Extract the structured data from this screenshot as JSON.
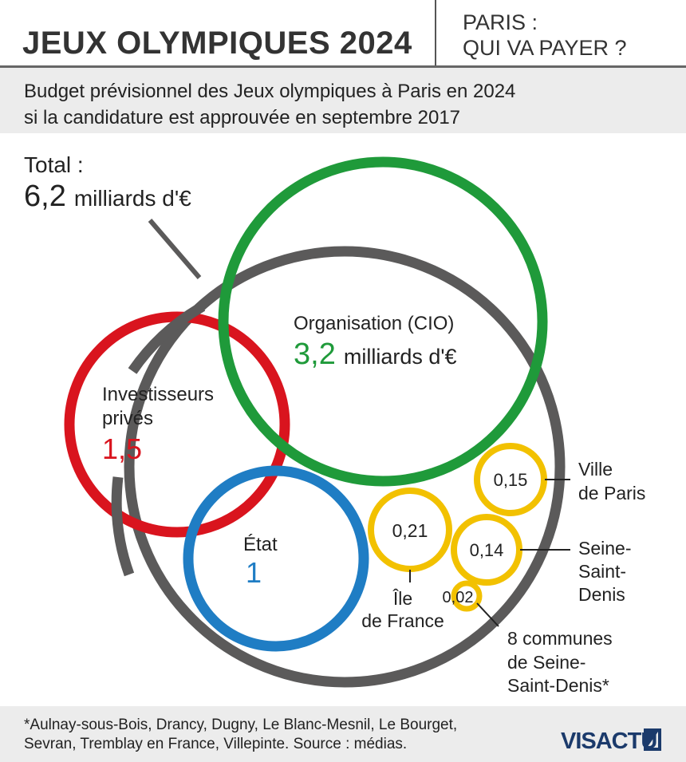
{
  "header": {
    "title": "JEUX OLYMPIQUES 2024",
    "side_title_line1": "PARIS :",
    "side_title_line2": "QUI VA PAYER ?"
  },
  "subtitle": {
    "line1": "Budget prévisionnel des Jeux olympiques à Paris en 2024",
    "line2": "si la candidature est approuvée en septembre 2017"
  },
  "chart_data": {
    "type": "bubble",
    "unit": "milliards d'€",
    "total": {
      "label": "Total :",
      "value": "6,2",
      "unit": "milliards d'€",
      "color": "#5b5a5a"
    },
    "bubbles": [
      {
        "key": "cio",
        "label_lines": [
          "Organisation (CIO)"
        ],
        "value": "3,2",
        "unit": "milliards d'€",
        "color": "#1f9a3a"
      },
      {
        "key": "prives",
        "label_lines": [
          "Investisseurs",
          "privés"
        ],
        "value": "1,5",
        "unit": "",
        "color": "#d9141e"
      },
      {
        "key": "etat",
        "label_lines": [
          "État"
        ],
        "value": "1",
        "unit": "",
        "color": "#1f7dc4"
      },
      {
        "key": "idf",
        "label_lines": [
          "Île",
          "de France"
        ],
        "value": "0,21",
        "unit": "",
        "color": "#f2c100"
      },
      {
        "key": "paris",
        "label_lines": [
          "Ville",
          "de Paris"
        ],
        "value": "0,15",
        "unit": "",
        "color": "#f2c100"
      },
      {
        "key": "ssd",
        "label_lines": [
          "Seine-",
          "Saint-",
          "Denis"
        ],
        "value": "0,14",
        "unit": "",
        "color": "#f2c100"
      },
      {
        "key": "communes",
        "label_lines": [
          "8 communes",
          "de Seine-",
          "Saint-Denis*"
        ],
        "value": "0,02",
        "unit": "",
        "color": "#f2c100"
      }
    ]
  },
  "footnote": {
    "line1": "*Aulnay-sous-Bois, Drancy, Dugny, Le Blanc-Mesnil, Le Bourget,",
    "line2": "Sevran, Tremblay en France, Villepinte. Source : médias."
  },
  "logo": {
    "text": "VISACTU",
    "color": "#1b3a6b"
  }
}
